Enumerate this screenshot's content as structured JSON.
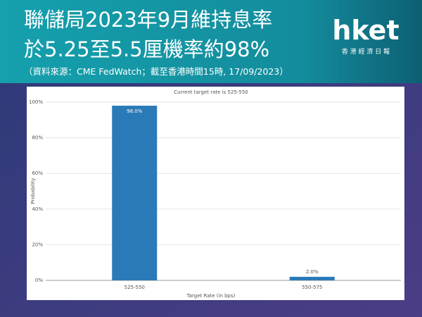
{
  "header": {
    "title_line1": "聯儲局2023年9月維持息率",
    "title_line2": "於5.25至5.5厘機率約98%",
    "source": "（資料來源：CME FedWatch；截至香港時間15時, 17/09/2023）",
    "logo": "hket",
    "logo_sub": "香 港 經 濟 日 報"
  },
  "chart_data": {
    "type": "bar",
    "title": "Current target rate is 525-550",
    "x_label": "Target Rate (in bps)",
    "y_label": "Probability",
    "categories": [
      "525-550",
      "550-575"
    ],
    "values": [
      98,
      2
    ],
    "value_labels": [
      "98.0%",
      "2.0%"
    ],
    "color": "#2a7ab8",
    "ylim": [
      0,
      100
    ],
    "yticks": [
      {
        "value": 0,
        "label": "0%"
      },
      {
        "value": 20,
        "label": "20%"
      },
      {
        "value": 40,
        "label": "40%"
      },
      {
        "value": 60,
        "label": "60%"
      },
      {
        "value": 80,
        "label": "80%"
      },
      {
        "value": 100,
        "label": "100%"
      }
    ],
    "grid": true
  }
}
